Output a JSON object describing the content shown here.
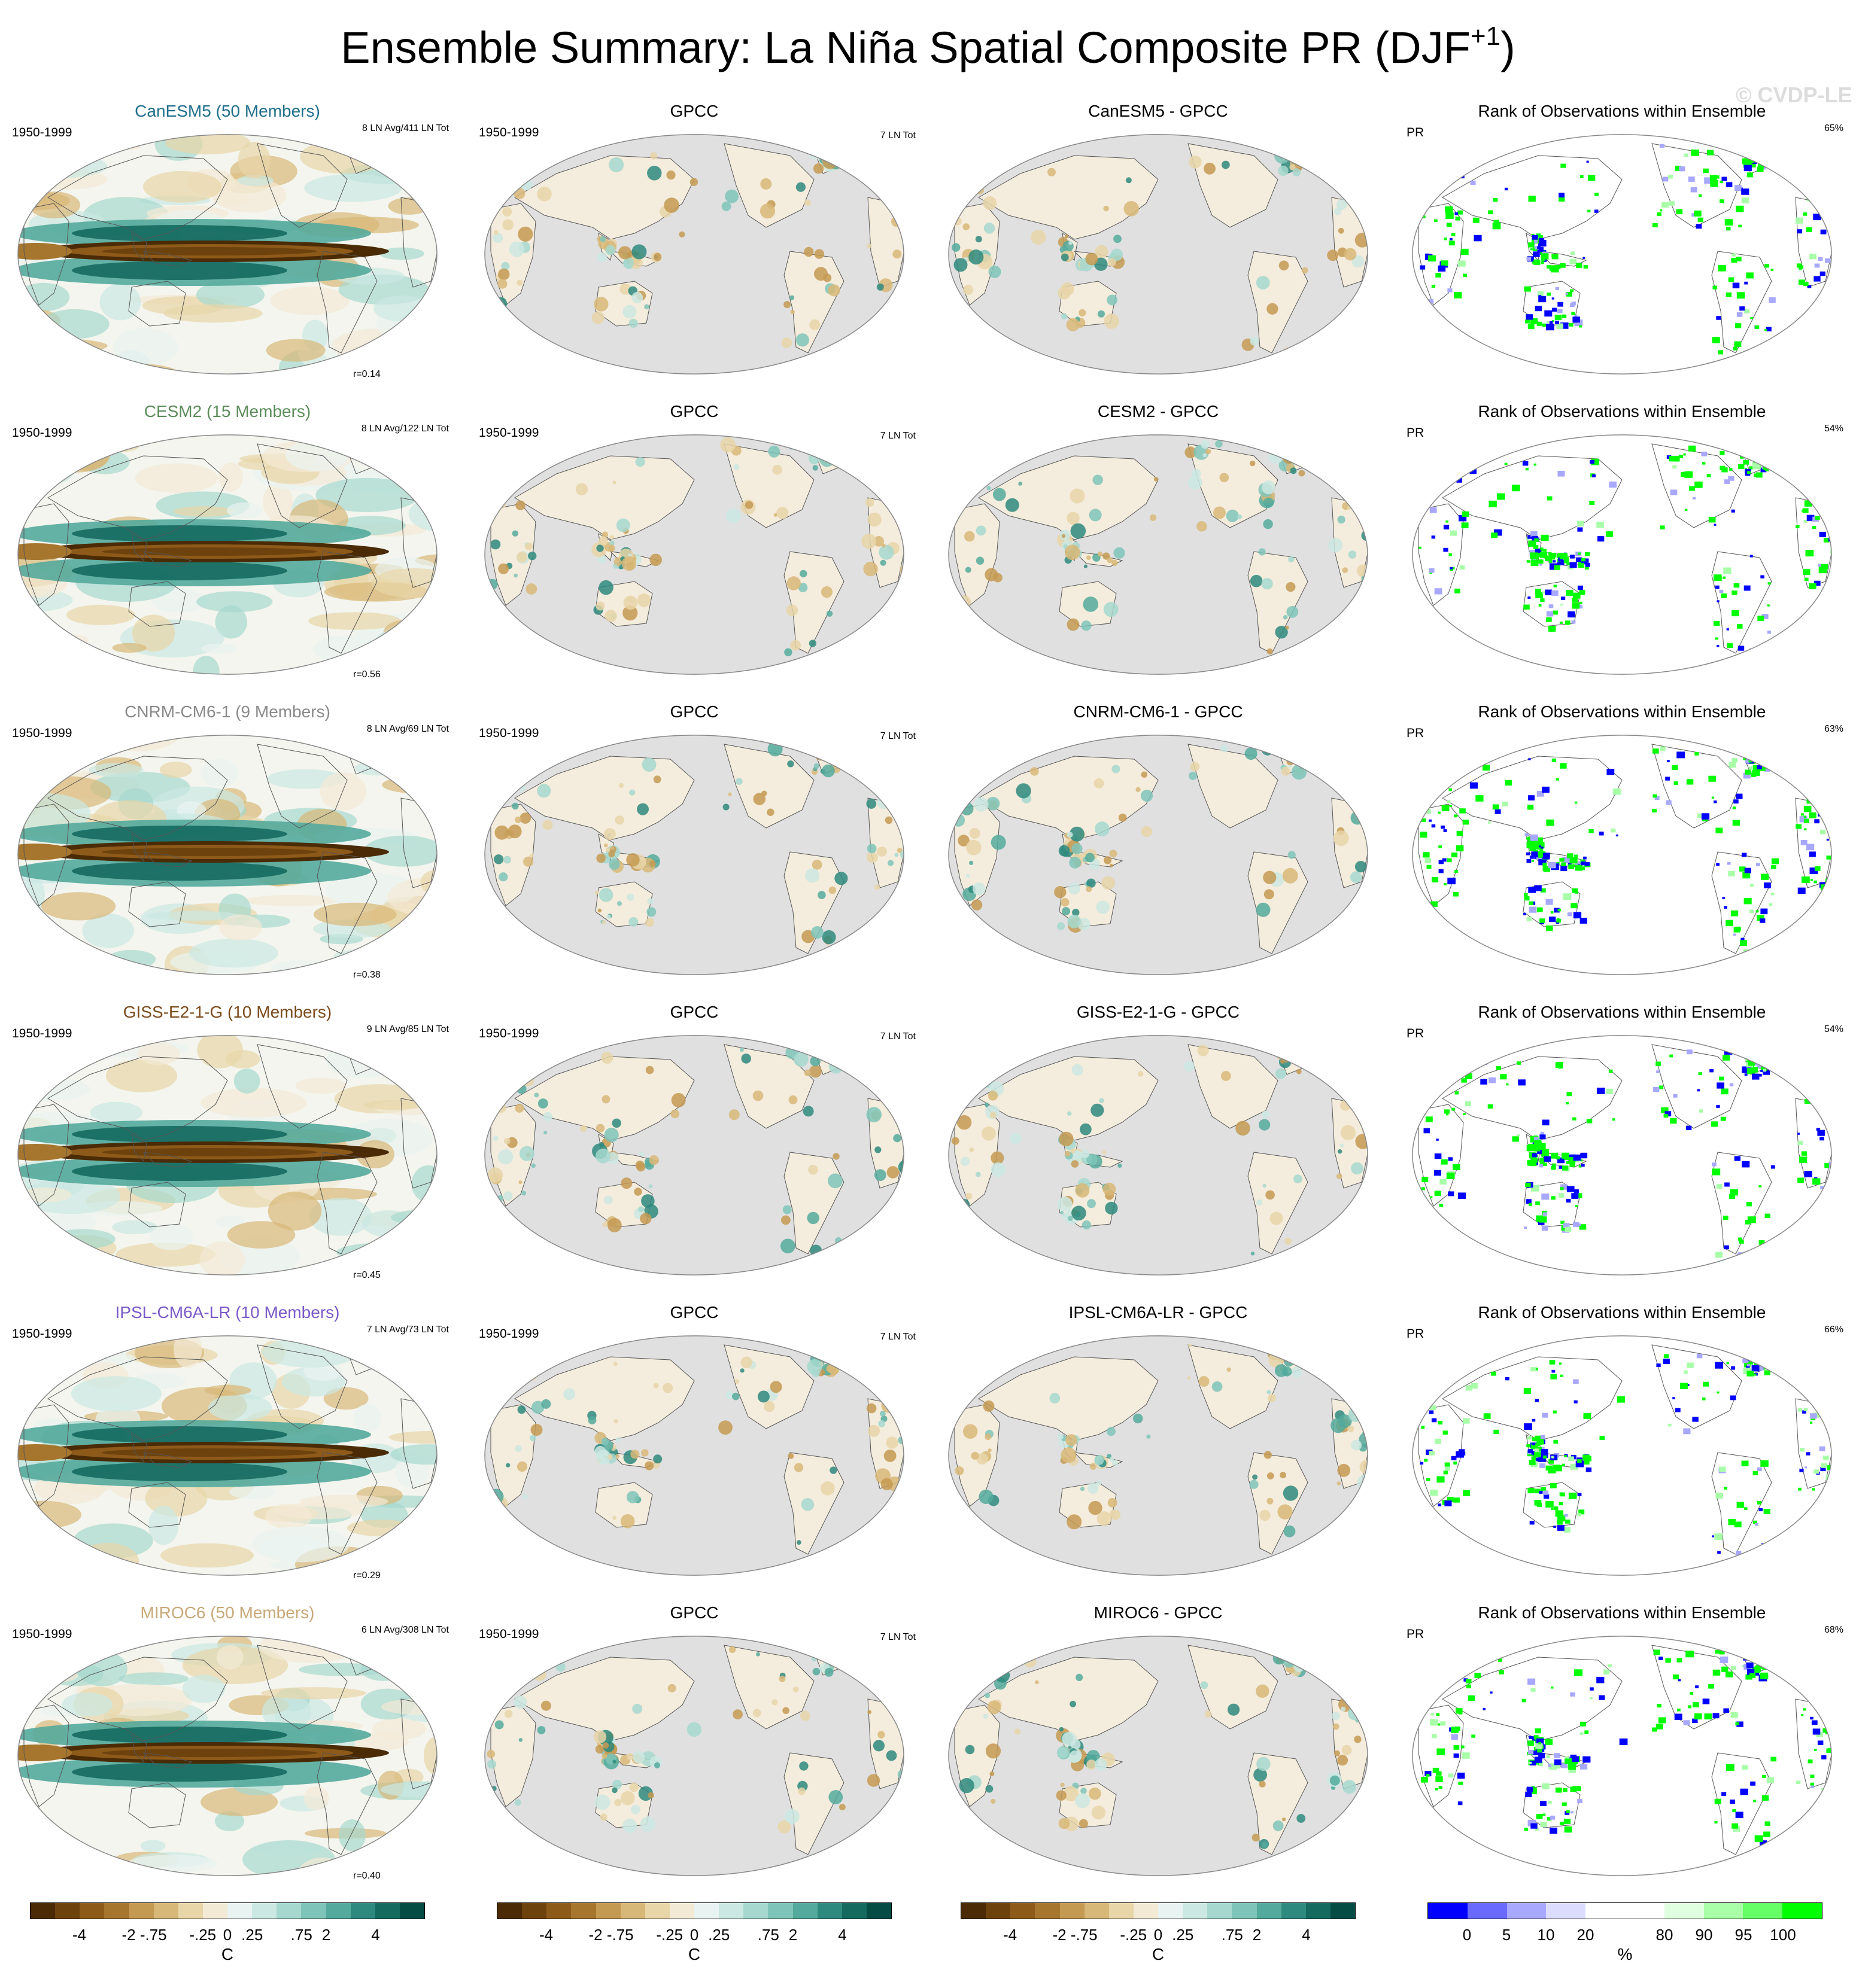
{
  "figure": {
    "title_main": "Ensemble Summary: La Niña Spatial Composite PR (DJF",
    "title_sup": "+1",
    "title_close": ")",
    "watermark": "© CVDP-LE"
  },
  "colors": {
    "title_colors": [
      "#1f6f8b",
      "#5b8c5a",
      "#8a8a8a",
      "#7a4a1a",
      "#7a5ac8",
      "#c8a878"
    ],
    "ocean_gray": "#e0e0e0",
    "brown_teal_scale": [
      "#4a2b05",
      "#6e420d",
      "#8d5a1a",
      "#a6762e",
      "#c49a52",
      "#d8b878",
      "#e8d5a8",
      "#f3ead6",
      "#e9f3f1",
      "#cbe8e2",
      "#a6d8cf",
      "#7fc4b8",
      "#54aa9c",
      "#2e8a7e",
      "#156a60",
      "#044c44"
    ],
    "rank_scale": [
      "#0000ff",
      "#6a6aff",
      "#a8a8ff",
      "#dcdcff",
      "#ffffff",
      "#ffffff",
      "#e0ffe0",
      "#a8ffa8",
      "#66ff66",
      "#00ff00"
    ]
  },
  "rows": [
    {
      "model_title": "CanESM5 (50 Members)",
      "period": "1950-1999",
      "counts": "8 LN Avg/411 LN Tot",
      "r": "r=0.14",
      "obs_title": "GPCC",
      "obs_period": "1950-1999",
      "obs_counts": "7 LN Tot",
      "diff_title": "CanESM5 - GPCC",
      "rank_title": "Rank of Observations within Ensemble",
      "rank_var": "PR",
      "rank_pct": "65%"
    },
    {
      "model_title": "CESM2 (15 Members)",
      "period": "1950-1999",
      "counts": "8 LN Avg/122 LN Tot",
      "r": "r=0.56",
      "obs_title": "GPCC",
      "obs_period": "1950-1999",
      "obs_counts": "7 LN Tot",
      "diff_title": "CESM2 - GPCC",
      "rank_title": "Rank of Observations within Ensemble",
      "rank_var": "PR",
      "rank_pct": "54%"
    },
    {
      "model_title": "CNRM-CM6-1 (9 Members)",
      "period": "1950-1999",
      "counts": "8 LN Avg/69 LN Tot",
      "r": "r=0.38",
      "obs_title": "GPCC",
      "obs_period": "1950-1999",
      "obs_counts": "7 LN Tot",
      "diff_title": "CNRM-CM6-1 - GPCC",
      "rank_title": "Rank of Observations within Ensemble",
      "rank_var": "PR",
      "rank_pct": "63%"
    },
    {
      "model_title": "GISS-E2-1-G (10 Members)",
      "period": "1950-1999",
      "counts": "9 LN Avg/85 LN Tot",
      "r": "r=0.45",
      "obs_title": "GPCC",
      "obs_period": "1950-1999",
      "obs_counts": "7 LN Tot",
      "diff_title": "GISS-E2-1-G - GPCC",
      "rank_title": "Rank of Observations within Ensemble",
      "rank_var": "PR",
      "rank_pct": "54%"
    },
    {
      "model_title": "IPSL-CM6A-LR (10 Members)",
      "period": "1950-1999",
      "counts": "7 LN Avg/73 LN Tot",
      "r": "r=0.29",
      "obs_title": "GPCC",
      "obs_period": "1950-1999",
      "obs_counts": "7 LN Tot",
      "diff_title": "IPSL-CM6A-LR - GPCC",
      "rank_title": "Rank of Observations within Ensemble",
      "rank_var": "PR",
      "rank_pct": "66%"
    },
    {
      "model_title": "MIROC6 (50 Members)",
      "period": "1950-1999",
      "counts": "6 LN Avg/308 LN Tot",
      "r": "r=0.40",
      "obs_title": "GPCC",
      "obs_period": "1950-1999",
      "obs_counts": "7 LN Tot",
      "diff_title": "MIROC6 - GPCC",
      "rank_title": "Rank of Observations within Ensemble",
      "rank_var": "PR",
      "rank_pct": "68%"
    }
  ],
  "colorbars": {
    "composite_ticks": [
      "-4",
      "-2",
      "-.75",
      "-.25",
      "0",
      ".25",
      ".75",
      "2",
      "4"
    ],
    "composite_unit": "C",
    "rank_ticks": [
      "0",
      "5",
      "10",
      "20",
      "80",
      "90",
      "95",
      "100"
    ],
    "rank_unit": "%"
  }
}
